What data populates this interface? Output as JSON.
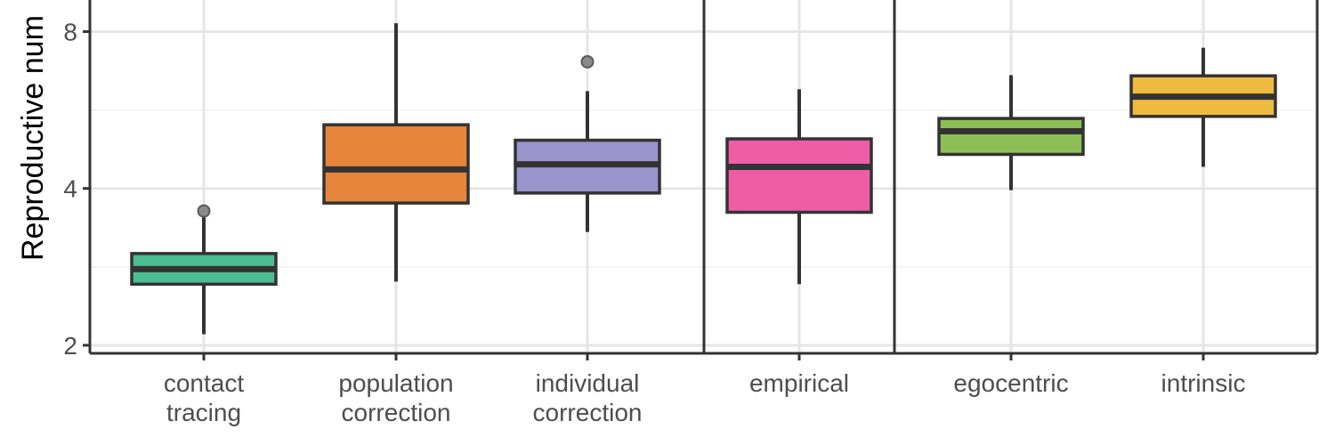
{
  "chart_data": {
    "type": "boxplot",
    "ylabel": "Reproductive num",
    "y_scale": "log2",
    "ylim": [
      1.93,
      9.2
    ],
    "y_ticks": [
      {
        "value": 2,
        "label": "2"
      },
      {
        "value": 4,
        "label": "4"
      },
      {
        "value": 8,
        "label": "8"
      }
    ],
    "y_minor_gridlines": [
      2.828,
      5.657
    ],
    "grid": true,
    "separators_after_category": [
      3,
      4
    ],
    "categories": [
      {
        "label_lines": [
          "contact",
          "tracing"
        ],
        "color": "#4dbd94",
        "whisker_low": 2.1,
        "q1": 2.62,
        "median": 2.8,
        "q3": 3.0,
        "whisker_high": 3.52,
        "outliers": [
          3.62
        ]
      },
      {
        "label_lines": [
          "population",
          "correction"
        ],
        "color": "#e6853b",
        "whisker_low": 2.65,
        "q1": 3.75,
        "median": 4.35,
        "q3": 5.3,
        "whisker_high": 8.3,
        "outliers": []
      },
      {
        "label_lines": [
          "individual",
          "correction"
        ],
        "color": "#9994cc",
        "whisker_low": 3.3,
        "q1": 3.92,
        "median": 4.45,
        "q3": 4.95,
        "whisker_high": 6.15,
        "outliers": [
          7.0
        ]
      },
      {
        "label_lines": [
          "empirical"
        ],
        "color": "#ee5ea6",
        "whisker_low": 2.62,
        "q1": 3.6,
        "median": 4.4,
        "q3": 4.98,
        "whisker_high": 6.2,
        "outliers": []
      },
      {
        "label_lines": [
          "egocentric"
        ],
        "color": "#8dbf56",
        "whisker_low": 3.97,
        "q1": 4.65,
        "median": 5.15,
        "q3": 5.45,
        "whisker_high": 6.6,
        "outliers": []
      },
      {
        "label_lines": [
          "intrinsic"
        ],
        "color": "#eeba3f",
        "whisker_low": 4.4,
        "q1": 5.5,
        "median": 6.0,
        "q3": 6.58,
        "whisker_high": 7.45,
        "outliers": []
      }
    ]
  }
}
